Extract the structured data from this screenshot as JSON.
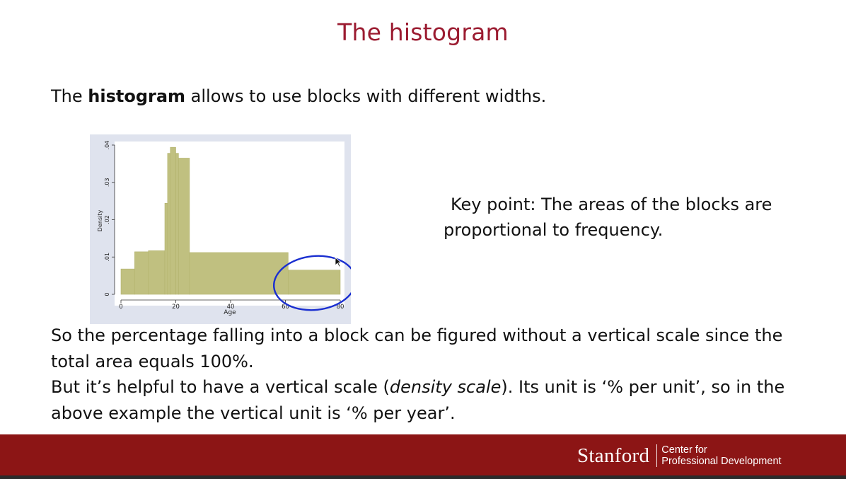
{
  "slide": {
    "title": "The histogram",
    "intro": {
      "before": "The ",
      "bold": "histogram",
      "after": " allows to use blocks with different widths."
    },
    "keypoint": {
      "line1": "Key point:  The areas of the blocks are",
      "line2": "proportional to frequency."
    },
    "body": {
      "line1": "So the percentage falling into a block can be figured without a vertical scale since the",
      "line2": "total area equals 100%.",
      "line3_before": "But it’s helpful to have a vertical scale (",
      "line3_em": "density scale",
      "line3_after": ").  Its unit is ‘% per unit’, so in the",
      "line4": "above example the vertical unit is ‘% per year’."
    }
  },
  "footer": {
    "brand": "Stanford",
    "unit_line1": "Center for",
    "unit_line2": "Professional Development",
    "color": "#8c1515"
  },
  "chart_data": {
    "type": "bar",
    "subtype": "histogram",
    "xlabel": "Age",
    "ylabel": "Density",
    "xlim": [
      0,
      80
    ],
    "ylim": [
      0,
      0.04
    ],
    "xticks": [
      0,
      20,
      40,
      60,
      80
    ],
    "xtick_labels": [
      "0",
      "20",
      "40",
      "60",
      "80"
    ],
    "yticks": [
      0,
      0.01,
      0.02,
      0.03,
      0.04
    ],
    "ytick_labels": [
      "0",
      ".01",
      ".02",
      ".03",
      ".04"
    ],
    "bins": [
      {
        "x0": 0,
        "x1": 5,
        "density": 0.0068
      },
      {
        "x0": 5,
        "x1": 10,
        "density": 0.0114
      },
      {
        "x0": 10,
        "x1": 16,
        "density": 0.0117
      },
      {
        "x0": 16,
        "x1": 17,
        "density": 0.0244
      },
      {
        "x0": 17,
        "x1": 18,
        "density": 0.0378
      },
      {
        "x0": 18,
        "x1": 20,
        "density": 0.0394
      },
      {
        "x0": 20,
        "x1": 21,
        "density": 0.0378
      },
      {
        "x0": 21,
        "x1": 25,
        "density": 0.0365
      },
      {
        "x0": 25,
        "x1": 61,
        "density": 0.0112
      },
      {
        "x0": 61,
        "x1": 80,
        "density": 0.0065
      }
    ],
    "bar_color": "#c0c080",
    "plot_background": "#ffffff",
    "panel_background": "#dfe3ee",
    "grid": false,
    "annotation": {
      "type": "circle",
      "around": "last-bin",
      "color": "#1a2fd0"
    }
  }
}
